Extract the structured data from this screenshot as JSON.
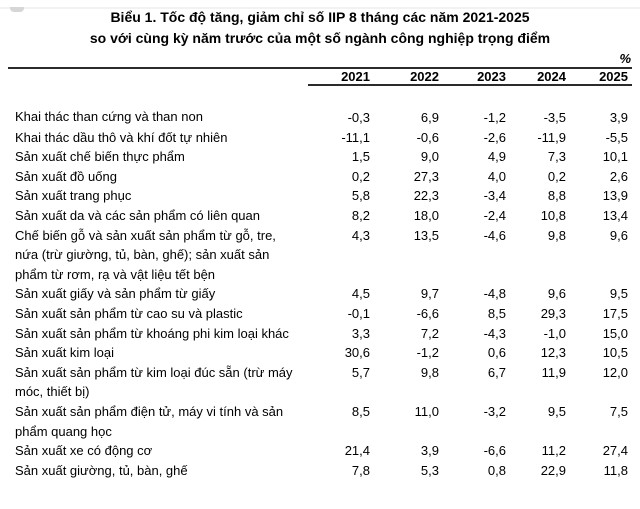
{
  "title": {
    "line1": "Biểu 1. Tốc độ tăng, giảm chỉ số IIP 8 tháng các năm 2021-2025",
    "line2": "so với cùng kỳ năm trước của một số ngành công nghiệp trọng điểm"
  },
  "unit_label": "%",
  "table": {
    "year_columns": [
      "2021",
      "2022",
      "2023",
      "2024",
      "2025"
    ],
    "rows": [
      {
        "label": "Khai thác than cứng và than non",
        "values": [
          "-0,3",
          "6,9",
          "-1,2",
          "-3,5",
          "3,9"
        ]
      },
      {
        "label": "Khai thác dầu thô và khí đốt tự nhiên",
        "values": [
          "-11,1",
          "-0,6",
          "-2,6",
          "-11,9",
          "-5,5"
        ]
      },
      {
        "label": "Sản xuất chế biến thực phẩm",
        "values": [
          "1,5",
          "9,0",
          "4,9",
          "7,3",
          "10,1"
        ]
      },
      {
        "label": "Sản xuất đồ uống",
        "values": [
          "0,2",
          "27,3",
          "4,0",
          "0,2",
          "2,6"
        ]
      },
      {
        "label": "Sản xuất trang phục",
        "values": [
          "5,8",
          "22,3",
          "-3,4",
          "8,8",
          "13,9"
        ]
      },
      {
        "label": "Sản xuất da và các sản phẩm có liên quan",
        "values": [
          "8,2",
          "18,0",
          "-2,4",
          "10,8",
          "13,4"
        ]
      },
      {
        "label": "Chế biến gỗ và sản xuất sản phẩm từ gỗ, tre, nứa (trừ giường, tủ, bàn, ghế); sản xuất sản phẩm từ rơm, rạ và vật liệu tết bện",
        "values": [
          "4,3",
          "13,5",
          "-4,6",
          "9,8",
          "9,6"
        ]
      },
      {
        "label": "Sản xuất giấy và sản phẩm từ giấy",
        "values": [
          "4,5",
          "9,7",
          "-4,8",
          "9,6",
          "9,5"
        ]
      },
      {
        "label": "Sản xuất sản phẩm từ cao su và plastic",
        "values": [
          "-0,1",
          "-6,6",
          "8,5",
          "29,3",
          "17,5"
        ]
      },
      {
        "label": "Sản xuất sản phẩm từ khoáng phi kim loại khác",
        "values": [
          "3,3",
          "7,2",
          "-4,3",
          "-1,0",
          "15,0"
        ]
      },
      {
        "label": "Sản xuất kim loại",
        "values": [
          "30,6",
          "-1,2",
          "0,6",
          "12,3",
          "10,5"
        ]
      },
      {
        "label": "Sản xuất sản phẩm từ kim loại đúc sẵn (trừ máy móc, thiết bị)",
        "values": [
          "5,7",
          "9,8",
          "6,7",
          "11,9",
          "12,0"
        ]
      },
      {
        "label": "Sản xuất sản phẩm điện tử, máy vi tính và sản phẩm quang học",
        "values": [
          "8,5",
          "11,0",
          "-3,2",
          "9,5",
          "7,5"
        ]
      },
      {
        "label": "Sản xuất xe có động cơ",
        "values": [
          "21,4",
          "3,9",
          "-6,6",
          "11,2",
          "27,4"
        ]
      },
      {
        "label": "Sản xuất giường, tủ, bàn, ghế",
        "values": [
          "7,8",
          "5,3",
          "0,8",
          "22,9",
          "11,8"
        ]
      }
    ]
  },
  "colors": {
    "text": "#000000",
    "rule": "#2b2b2b",
    "top_strip": "#f2f2f2",
    "top_tab": "#d6d6d6"
  }
}
